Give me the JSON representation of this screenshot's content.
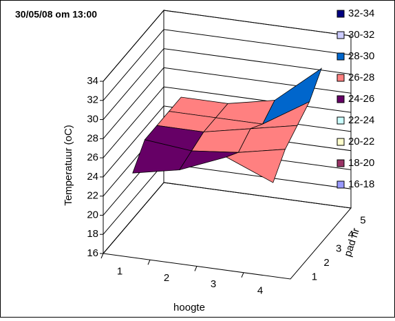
{
  "chart_data": {
    "type": "surface",
    "title": "30/05/08 om 13:00",
    "zlabel": "Temperatuur (oC)",
    "xlabel": "hoogte",
    "depthlabel": "pad nr",
    "categories": [
      "1",
      "2",
      "3",
      "4"
    ],
    "depth_categories": [
      "1",
      "2",
      "3",
      "4",
      "5"
    ],
    "values": [
      [
        24,
        25,
        27,
        25
      ],
      [
        26,
        25.5,
        26,
        27
      ],
      [
        26,
        26,
        27,
        28
      ],
      [
        26,
        26,
        26,
        29
      ],
      [
        26,
        26,
        27,
        31
      ]
    ],
    "zlim": [
      16,
      34
    ],
    "zticks": [
      16,
      18,
      20,
      22,
      24,
      26,
      28,
      30,
      32,
      34
    ],
    "grid": true,
    "legend": [
      {
        "label": "32-34",
        "range": [
          32,
          34
        ],
        "color": "#000080"
      },
      {
        "label": "30-32",
        "range": [
          30,
          32
        ],
        "color": "#ccccff"
      },
      {
        "label": "28-30",
        "range": [
          28,
          30
        ],
        "color": "#0066cc"
      },
      {
        "label": "26-28",
        "range": [
          26,
          28
        ],
        "color": "#ff8080"
      },
      {
        "label": "24-26",
        "range": [
          24,
          26
        ],
        "color": "#660066"
      },
      {
        "label": "22-24",
        "range": [
          22,
          24
        ],
        "color": "#ccffff"
      },
      {
        "label": "20-22",
        "range": [
          20,
          22
        ],
        "color": "#ffffcc"
      },
      {
        "label": "18-20",
        "range": [
          18,
          20
        ],
        "color": "#993366"
      },
      {
        "label": "16-18",
        "range": [
          16,
          18
        ],
        "color": "#9999ff"
      }
    ]
  }
}
